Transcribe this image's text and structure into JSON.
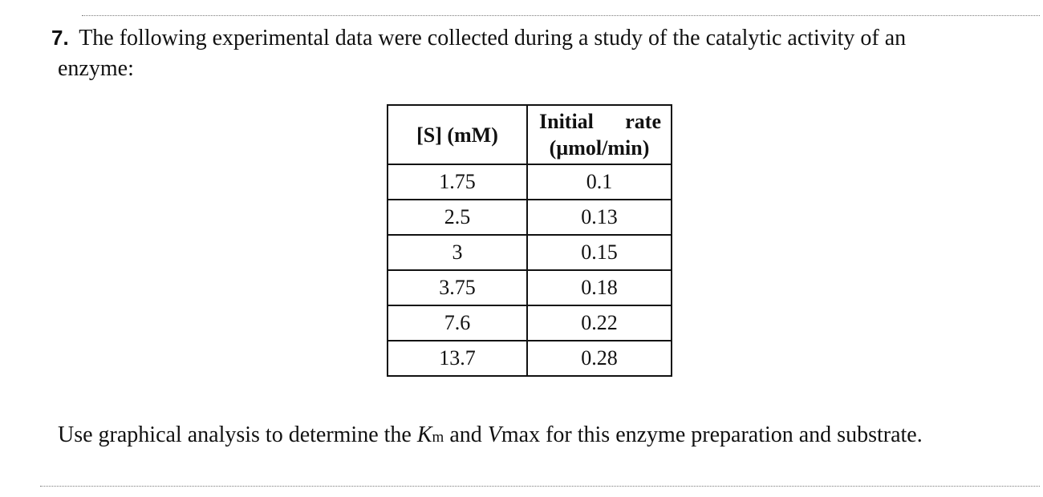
{
  "question": {
    "number": "7.",
    "line1": "The following experimental data were collected during a study of the catalytic activity of an",
    "line2": "enzyme:"
  },
  "table": {
    "headers": {
      "col1": "[S] (mM)",
      "col2_line1": "Initial rate",
      "col2_line2": "(µmol/min)"
    },
    "rows": [
      [
        "1.75",
        "0.1"
      ],
      [
        "2.5",
        "0.13"
      ],
      [
        "3",
        "0.15"
      ],
      [
        "3.75",
        "0.18"
      ],
      [
        "7.6",
        "0.22"
      ],
      [
        "13.7",
        "0.28"
      ]
    ]
  },
  "instruction": {
    "before": "Use graphical analysis to determine the ",
    "km_var": "K",
    "km_sub": "m",
    "middle": " and ",
    "vmax_var": "V",
    "vmax_rest": "max",
    "after": " for this enzyme preparation and substrate."
  }
}
